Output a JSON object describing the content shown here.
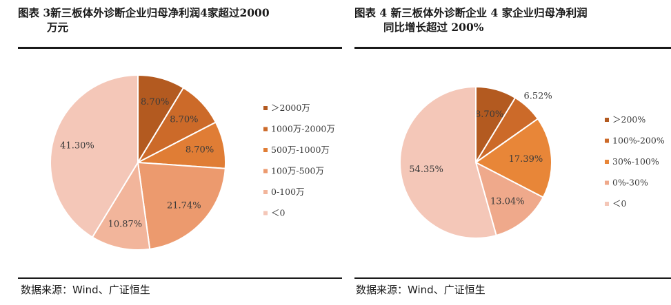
{
  "left": {
    "title_line1": "图表 3新三板体外诊断企业归母净利润4家超过2000",
    "title_line2": "万元",
    "source": "数据来源：Wind、广证恒生"
  },
  "right": {
    "title_line1": "图表 4 新三板体外诊断企业 4 家企业归母净利润",
    "title_line2": "同比增长超过 200%",
    "source": "数据来源：Wind、广证恒生"
  },
  "chart_data": [
    {
      "type": "pie",
      "title": "图表 3新三板体外诊断企业归母净利润4家超过2000万元",
      "legend_position": "right",
      "slices": [
        {
          "name": "＞2000万",
          "value": 8.7,
          "label": "8.70%",
          "color": "#b35a20"
        },
        {
          "name": "1000万-2000万",
          "value": 8.7,
          "label": "8.70%",
          "color": "#cc6a29"
        },
        {
          "name": "500万-1000万",
          "value": 8.7,
          "label": "8.70%",
          "color": "#e07d35"
        },
        {
          "name": "100万-500万",
          "value": 21.74,
          "label": "21.74%",
          "color": "#ec9a6e"
        },
        {
          "name": "0-100万",
          "value": 10.87,
          "label": "10.87%",
          "color": "#f2b59b"
        },
        {
          "name": "＜0",
          "value": 41.3,
          "label": "41.30%",
          "color": "#f4c7b8"
        }
      ]
    },
    {
      "type": "pie",
      "title": "图表 4 新三板体外诊断企业 4 家企业归母净利润同比增长超过 200%",
      "legend_position": "right",
      "slices": [
        {
          "name": "＞200%",
          "value": 8.7,
          "label": "8.70%",
          "color": "#b35a20"
        },
        {
          "name": "100%-200%",
          "value": 6.52,
          "label": "6.52%",
          "color": "#cc6a29"
        },
        {
          "name": "30%-100%",
          "value": 17.39,
          "label": "17.39%",
          "color": "#e88638"
        },
        {
          "name": "0%-30%",
          "value": 13.04,
          "label": "13.04%",
          "color": "#efa98b"
        },
        {
          "name": "＜0",
          "value": 54.35,
          "label": "54.35%",
          "color": "#f4c7b8"
        }
      ]
    }
  ]
}
